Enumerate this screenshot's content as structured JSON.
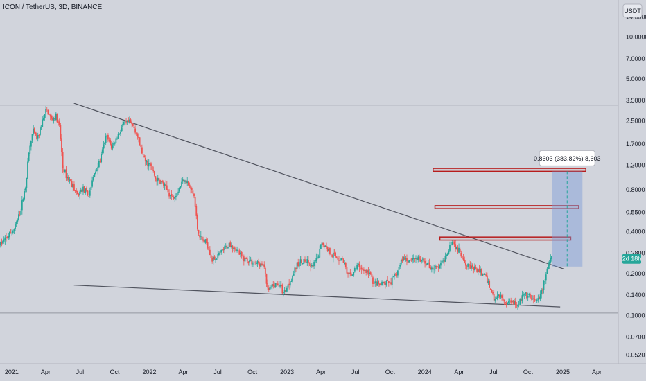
{
  "header": {
    "symbol_title": "ICON / TetherUS, 3D, BINANCE",
    "currency_button": "USDT"
  },
  "colors": {
    "background": "#d1d4dc",
    "up": "#26a69a",
    "down": "#ef5350",
    "trendline": "#50535e",
    "zone_border": "#b71c1c",
    "measure_fill": "#7b9bd8",
    "measure_line": "#26a69a",
    "price_tag": "#26a69a"
  },
  "chart_data": {
    "type": "candlestick",
    "y_scale": "log",
    "ylim": [
      0.045,
      18.5
    ],
    "xlim": [
      "2020-12-01",
      "2025-05-28"
    ],
    "y_ticks": [
      {
        "value": 14,
        "label": "14.0000"
      },
      {
        "value": 10,
        "label": "10.0000"
      },
      {
        "value": 7,
        "label": "7.0000"
      },
      {
        "value": 5,
        "label": "5.0000"
      },
      {
        "value": 3.5,
        "label": "3.5000"
      },
      {
        "value": 2.5,
        "label": "2.5000"
      },
      {
        "value": 1.7,
        "label": "1.7000"
      },
      {
        "value": 1.2,
        "label": "1.2000"
      },
      {
        "value": 0.8,
        "label": "0.8000"
      },
      {
        "value": 0.55,
        "label": "0.5500"
      },
      {
        "value": 0.4,
        "label": "0.4000"
      },
      {
        "value": 0.28,
        "label": "0.2800"
      },
      {
        "value": 0.2,
        "label": "0.2000"
      },
      {
        "value": 0.14,
        "label": "0.1400"
      },
      {
        "value": 0.1,
        "label": "0.1000"
      },
      {
        "value": 0.07,
        "label": "0.0700"
      },
      {
        "value": 0.052,
        "label": "0.0520"
      }
    ],
    "x_ticks": [
      {
        "date": "2021-01-01",
        "label": "2021"
      },
      {
        "date": "2021-04-01",
        "label": "Apr"
      },
      {
        "date": "2021-07-01",
        "label": "Jul"
      },
      {
        "date": "2021-10-01",
        "label": "Oct"
      },
      {
        "date": "2022-01-01",
        "label": "2022"
      },
      {
        "date": "2022-04-01",
        "label": "Apr"
      },
      {
        "date": "2022-07-01",
        "label": "Jul"
      },
      {
        "date": "2022-10-01",
        "label": "Oct"
      },
      {
        "date": "2023-01-01",
        "label": "2023"
      },
      {
        "date": "2023-04-01",
        "label": "Apr"
      },
      {
        "date": "2023-07-01",
        "label": "Jul"
      },
      {
        "date": "2023-10-01",
        "label": "Oct"
      },
      {
        "date": "2024-01-01",
        "label": "2024"
      },
      {
        "date": "2024-04-01",
        "label": "Apr"
      },
      {
        "date": "2024-07-01",
        "label": "Jul"
      },
      {
        "date": "2024-10-01",
        "label": "Oct"
      },
      {
        "date": "2025-01-01",
        "label": "2025"
      },
      {
        "date": "2025-04-01",
        "label": "Apr"
      }
    ],
    "price_path": [
      [
        "2020-12-01",
        0.32
      ],
      [
        "2020-12-20",
        0.36
      ],
      [
        "2021-01-10",
        0.42
      ],
      [
        "2021-01-25",
        0.55
      ],
      [
        "2021-02-08",
        0.85
      ],
      [
        "2021-02-18",
        1.55
      ],
      [
        "2021-02-28",
        2.1
      ],
      [
        "2021-03-12",
        1.85
      ],
      [
        "2021-03-25",
        2.5
      ],
      [
        "2021-04-05",
        3.0
      ],
      [
        "2021-04-18",
        2.55
      ],
      [
        "2021-04-30",
        2.7
      ],
      [
        "2021-05-10",
        2.2
      ],
      [
        "2021-05-18",
        1.15
      ],
      [
        "2021-05-28",
        1.0
      ],
      [
        "2021-06-10",
        0.9
      ],
      [
        "2021-06-25",
        0.72
      ],
      [
        "2021-07-10",
        0.82
      ],
      [
        "2021-07-25",
        0.72
      ],
      [
        "2021-08-10",
        1.05
      ],
      [
        "2021-08-25",
        1.3
      ],
      [
        "2021-09-10",
        1.95
      ],
      [
        "2021-09-25",
        1.6
      ],
      [
        "2021-10-10",
        1.95
      ],
      [
        "2021-10-25",
        2.35
      ],
      [
        "2021-11-10",
        2.45
      ],
      [
        "2021-11-25",
        2.2
      ],
      [
        "2021-12-08",
        1.7
      ],
      [
        "2021-12-20",
        1.3
      ],
      [
        "2022-01-05",
        1.2
      ],
      [
        "2022-01-20",
        0.95
      ],
      [
        "2022-02-05",
        0.9
      ],
      [
        "2022-02-20",
        0.78
      ],
      [
        "2022-03-05",
        0.7
      ],
      [
        "2022-03-20",
        0.8
      ],
      [
        "2022-04-05",
        0.98
      ],
      [
        "2022-04-18",
        0.85
      ],
      [
        "2022-05-01",
        0.72
      ],
      [
        "2022-05-10",
        0.42
      ],
      [
        "2022-05-20",
        0.35
      ],
      [
        "2022-06-05",
        0.33
      ],
      [
        "2022-06-18",
        0.25
      ],
      [
        "2022-07-05",
        0.27
      ],
      [
        "2022-07-20",
        0.3
      ],
      [
        "2022-08-05",
        0.33
      ],
      [
        "2022-08-20",
        0.3
      ],
      [
        "2022-09-05",
        0.26
      ],
      [
        "2022-09-20",
        0.25
      ],
      [
        "2022-10-05",
        0.24
      ],
      [
        "2022-10-20",
        0.235
      ],
      [
        "2022-11-05",
        0.22
      ],
      [
        "2022-11-10",
        0.15
      ],
      [
        "2022-11-25",
        0.16
      ],
      [
        "2022-12-10",
        0.17
      ],
      [
        "2022-12-25",
        0.145
      ],
      [
        "2023-01-10",
        0.175
      ],
      [
        "2023-01-25",
        0.22
      ],
      [
        "2023-02-10",
        0.25
      ],
      [
        "2023-02-25",
        0.24
      ],
      [
        "2023-03-10",
        0.22
      ],
      [
        "2023-03-25",
        0.26
      ],
      [
        "2023-04-05",
        0.34
      ],
      [
        "2023-04-15",
        0.31
      ],
      [
        "2023-04-30",
        0.28
      ],
      [
        "2023-05-15",
        0.26
      ],
      [
        "2023-06-01",
        0.25
      ],
      [
        "2023-06-12",
        0.19
      ],
      [
        "2023-06-25",
        0.2
      ],
      [
        "2023-07-10",
        0.23
      ],
      [
        "2023-07-25",
        0.21
      ],
      [
        "2023-08-10",
        0.2
      ],
      [
        "2023-08-20",
        0.17
      ],
      [
        "2023-09-05",
        0.165
      ],
      [
        "2023-09-20",
        0.17
      ],
      [
        "2023-10-05",
        0.175
      ],
      [
        "2023-10-20",
        0.2
      ],
      [
        "2023-11-05",
        0.26
      ],
      [
        "2023-11-20",
        0.25
      ],
      [
        "2023-12-05",
        0.26
      ],
      [
        "2023-12-20",
        0.25
      ],
      [
        "2024-01-05",
        0.24
      ],
      [
        "2024-01-20",
        0.22
      ],
      [
        "2024-02-05",
        0.22
      ],
      [
        "2024-02-20",
        0.24
      ],
      [
        "2024-03-05",
        0.3
      ],
      [
        "2024-03-15",
        0.35
      ],
      [
        "2024-03-25",
        0.31
      ],
      [
        "2024-04-10",
        0.27
      ],
      [
        "2024-04-20",
        0.24
      ],
      [
        "2024-05-05",
        0.22
      ],
      [
        "2024-05-20",
        0.21
      ],
      [
        "2024-06-05",
        0.2
      ],
      [
        "2024-06-20",
        0.17
      ],
      [
        "2024-07-05",
        0.13
      ],
      [
        "2024-07-20",
        0.14
      ],
      [
        "2024-08-05",
        0.12
      ],
      [
        "2024-08-20",
        0.13
      ],
      [
        "2024-09-05",
        0.12
      ],
      [
        "2024-09-20",
        0.14
      ],
      [
        "2024-10-05",
        0.135
      ],
      [
        "2024-10-20",
        0.125
      ],
      [
        "2024-11-01",
        0.13
      ],
      [
        "2024-11-10",
        0.16
      ],
      [
        "2024-11-20",
        0.2
      ],
      [
        "2024-12-01",
        0.255
      ]
    ],
    "horizontal_lines": [
      {
        "name": "resistance",
        "value": 3.25
      },
      {
        "name": "support",
        "value": 0.104
      }
    ],
    "trendlines": [
      {
        "name": "descending-resistance",
        "from": [
          "2021-06-15",
          3.35
        ],
        "to": [
          "2025-01-05",
          0.215
        ]
      },
      {
        "name": "lower-support",
        "from": [
          "2021-06-15",
          0.165
        ],
        "to": [
          "2024-12-25",
          0.115
        ]
      }
    ],
    "zones": [
      {
        "name": "target-zone-1",
        "start": "2024-02-10",
        "end": "2025-01-22",
        "top": 0.366,
        "bottom": 0.348
      },
      {
        "name": "target-zone-2",
        "start": "2024-01-28",
        "end": "2025-02-12",
        "top": 0.615,
        "bottom": 0.586
      },
      {
        "name": "target-zone-3",
        "start": "2024-01-23",
        "end": "2025-03-03",
        "top": 1.14,
        "bottom": 1.085
      }
    ],
    "measure": {
      "start": "2024-12-03",
      "end": "2025-02-22",
      "low": 0.2244,
      "high": 1.0847,
      "label": "0.8603 (383.82%) 8,603"
    },
    "last_price": {
      "value": 0.255,
      "label": "2d 18h"
    }
  }
}
